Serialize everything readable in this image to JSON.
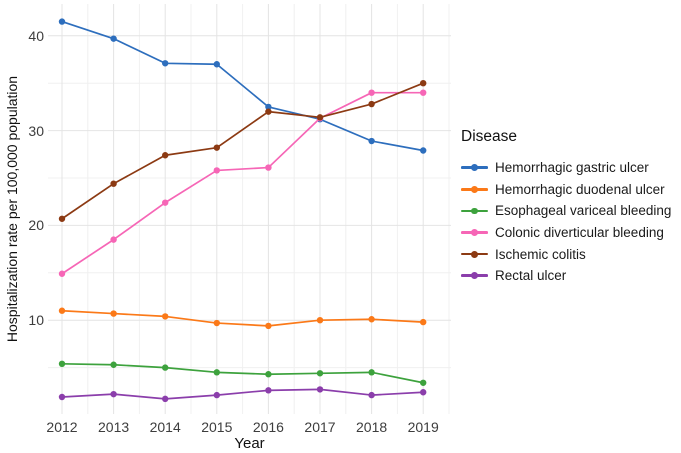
{
  "chart_data": {
    "type": "line",
    "title": "",
    "xlabel": "Year",
    "ylabel": "Hospitalization rate per 100,000 population",
    "legend_title": "Disease",
    "legend_position": "right",
    "grid": true,
    "x": [
      2012,
      2013,
      2014,
      2015,
      2016,
      2017,
      2018,
      2019
    ],
    "x_ticks": [
      "2012",
      "2013",
      "2014",
      "2015",
      "2016",
      "2017",
      "2018",
      "2019"
    ],
    "y_ticks": [
      10,
      20,
      30,
      40
    ],
    "xlim": [
      2011.6,
      2019.6
    ],
    "ylim": [
      0,
      43.5
    ],
    "series": [
      {
        "name": "Hemorrhagic gastric ulcer",
        "color": "#2D6EBD",
        "values": [
          41.5,
          39.7,
          37.1,
          37.0,
          32.5,
          31.2,
          28.9,
          27.9
        ]
      },
      {
        "name": "Hemorrhagic duodenal ulcer",
        "color": "#FB7918",
        "values": [
          11.0,
          10.7,
          10.4,
          9.7,
          9.4,
          10.0,
          10.1,
          9.8
        ]
      },
      {
        "name": "Esophageal variceal bleeding",
        "color": "#3DA23D",
        "values": [
          5.4,
          5.3,
          5.0,
          4.5,
          4.3,
          4.4,
          4.5,
          3.4
        ]
      },
      {
        "name": "Colonic diverticular bleeding",
        "color": "#F666B6",
        "values": [
          14.9,
          18.5,
          22.4,
          25.8,
          26.1,
          31.3,
          34.0,
          34.0
        ]
      },
      {
        "name": "Ischemic colitis",
        "color": "#8C3A13",
        "values": [
          20.7,
          24.4,
          27.4,
          28.2,
          32.0,
          31.4,
          32.8,
          35.0
        ]
      },
      {
        "name": "Rectal ulcer",
        "color": "#8B3EAB",
        "values": [
          1.9,
          2.2,
          1.7,
          2.1,
          2.6,
          2.7,
          2.1,
          2.4
        ]
      }
    ]
  }
}
